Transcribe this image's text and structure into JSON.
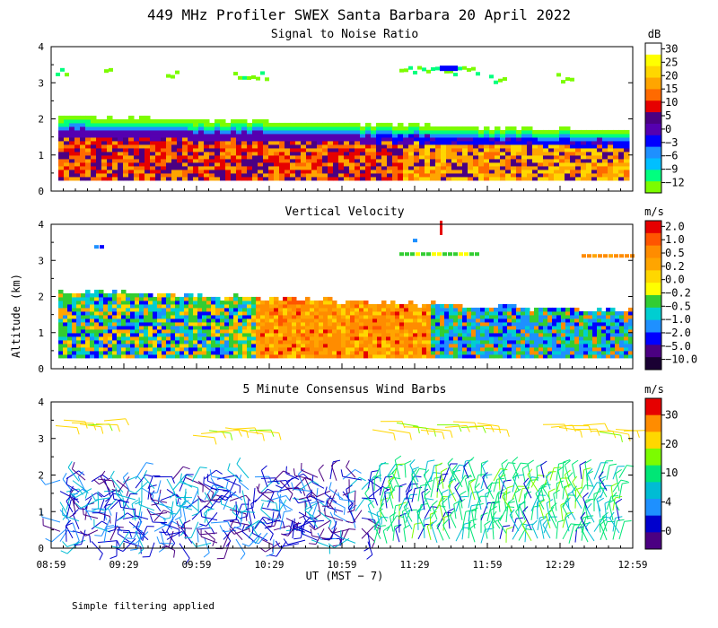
{
  "figure": {
    "title": "449 MHz Profiler SWEX Santa Barbara 20 April 2022",
    "ylabel": "Altitude (km)",
    "xlabel": "UT  (MST − 7)",
    "footnote": "Simple filtering applied"
  },
  "chart_data": [
    {
      "type": "heatmap",
      "title": "Signal to Noise Ratio",
      "x_ticks": [
        "08:59",
        "09:29",
        "09:59",
        "10:29",
        "10:59",
        "11:29",
        "11:59",
        "12:29",
        "12:59"
      ],
      "ylim": [
        0,
        4
      ],
      "y_ticks": [
        "0",
        "1",
        "2",
        "3",
        "4"
      ],
      "colorbar": {
        "unit": "dB",
        "labels": [
          "30",
          "25",
          "20",
          "15",
          "10",
          "5",
          "0",
          "−3",
          "−6",
          "−9",
          "−12"
        ],
        "colors": [
          "#ffffff",
          "#ffff00",
          "#ffd700",
          "#ffa500",
          "#ff6a00",
          "#e60000",
          "#4b0082",
          "#5500b0",
          "#0000ff",
          "#1e90ff",
          "#00bfff",
          "#00ff7f",
          "#7cfc00"
        ]
      }
    },
    {
      "type": "heatmap",
      "title": "Vertical Velocity",
      "x_ticks": [
        "08:59",
        "09:29",
        "09:59",
        "10:29",
        "10:59",
        "11:29",
        "11:59",
        "12:29",
        "12:59"
      ],
      "ylim": [
        0,
        4
      ],
      "y_ticks": [
        "0",
        "1",
        "2",
        "3",
        "4"
      ],
      "colorbar": {
        "unit": "m/s",
        "labels": [
          "2.0",
          "1.0",
          "0.5",
          "0.2",
          "0.0",
          "−0.2",
          "−0.5",
          "−1.0",
          "−2.0",
          "−5.0",
          "−10.0"
        ],
        "colors": [
          "#e60000",
          "#ff5500",
          "#ff8c00",
          "#ffa500",
          "#ffd700",
          "#ffff00",
          "#32cd32",
          "#00ced1",
          "#1e90ff",
          "#0000ff",
          "#4b0082",
          "#1a0033"
        ]
      }
    },
    {
      "type": "wind_barbs",
      "title": "5 Minute Consensus Wind Barbs",
      "x_ticks": [
        "08:59",
        "09:29",
        "09:59",
        "10:29",
        "10:59",
        "11:29",
        "11:59",
        "12:29",
        "12:59"
      ],
      "ylim": [
        0,
        4
      ],
      "y_ticks": [
        "0",
        "1",
        "2",
        "3",
        "4"
      ],
      "colorbar": {
        "unit": "m/s",
        "labels": [
          "30",
          "20",
          "10",
          "4",
          "0"
        ],
        "colors": [
          "#e60000",
          "#ff8c00",
          "#ffd700",
          "#7cfc00",
          "#00e676",
          "#00bcd4",
          "#1e90ff",
          "#0000cd",
          "#4b0082"
        ]
      }
    }
  ]
}
